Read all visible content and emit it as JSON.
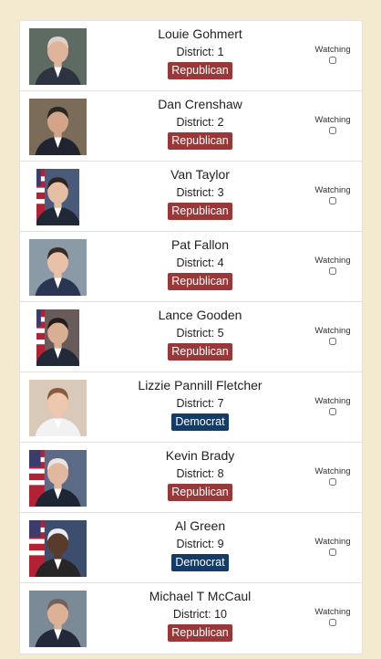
{
  "watching_label": "Watching",
  "district_prefix": "District: ",
  "colors": {
    "republican": "#993838",
    "democrat": "#143c66",
    "page_background": "#f3ead0"
  },
  "representatives": [
    {
      "name": "Louie Gohmert",
      "district": "1",
      "district_text": "District: 1",
      "party": "Republican",
      "party_key": "rep",
      "watching": false,
      "photo": "portrait-photo",
      "narrow": false
    },
    {
      "name": "Dan Crenshaw",
      "district": "2",
      "district_text": "District: 2",
      "party": "Republican",
      "party_key": "rep",
      "watching": false,
      "photo": "portrait-photo",
      "narrow": false
    },
    {
      "name": "Van Taylor",
      "district": "3",
      "district_text": "District: 3",
      "party": "Republican",
      "party_key": "rep",
      "watching": false,
      "photo": "portrait-photo-flag",
      "narrow": true
    },
    {
      "name": "Pat Fallon",
      "district": "4",
      "district_text": "District: 4",
      "party": "Republican",
      "party_key": "rep",
      "watching": false,
      "photo": "portrait-photo",
      "narrow": false
    },
    {
      "name": "Lance Gooden",
      "district": "5",
      "district_text": "District: 5",
      "party": "Republican",
      "party_key": "rep",
      "watching": false,
      "photo": "portrait-photo-flag",
      "narrow": true
    },
    {
      "name": "Lizzie Pannill Fletcher",
      "district": "7",
      "district_text": "District: 7",
      "party": "Democrat",
      "party_key": "dem",
      "watching": false,
      "photo": "portrait-photo",
      "narrow": false
    },
    {
      "name": "Kevin Brady",
      "district": "8",
      "district_text": "District: 8",
      "party": "Republican",
      "party_key": "rep",
      "watching": false,
      "photo": "portrait-photo-flag",
      "narrow": false
    },
    {
      "name": "Al Green",
      "district": "9",
      "district_text": "District: 9",
      "party": "Democrat",
      "party_key": "dem",
      "watching": false,
      "photo": "portrait-photo-flag",
      "narrow": false
    },
    {
      "name": "Michael T McCaul",
      "district": "10",
      "district_text": "District: 10",
      "party": "Republican",
      "party_key": "rep",
      "watching": false,
      "photo": "portrait-photo",
      "narrow": false
    }
  ]
}
